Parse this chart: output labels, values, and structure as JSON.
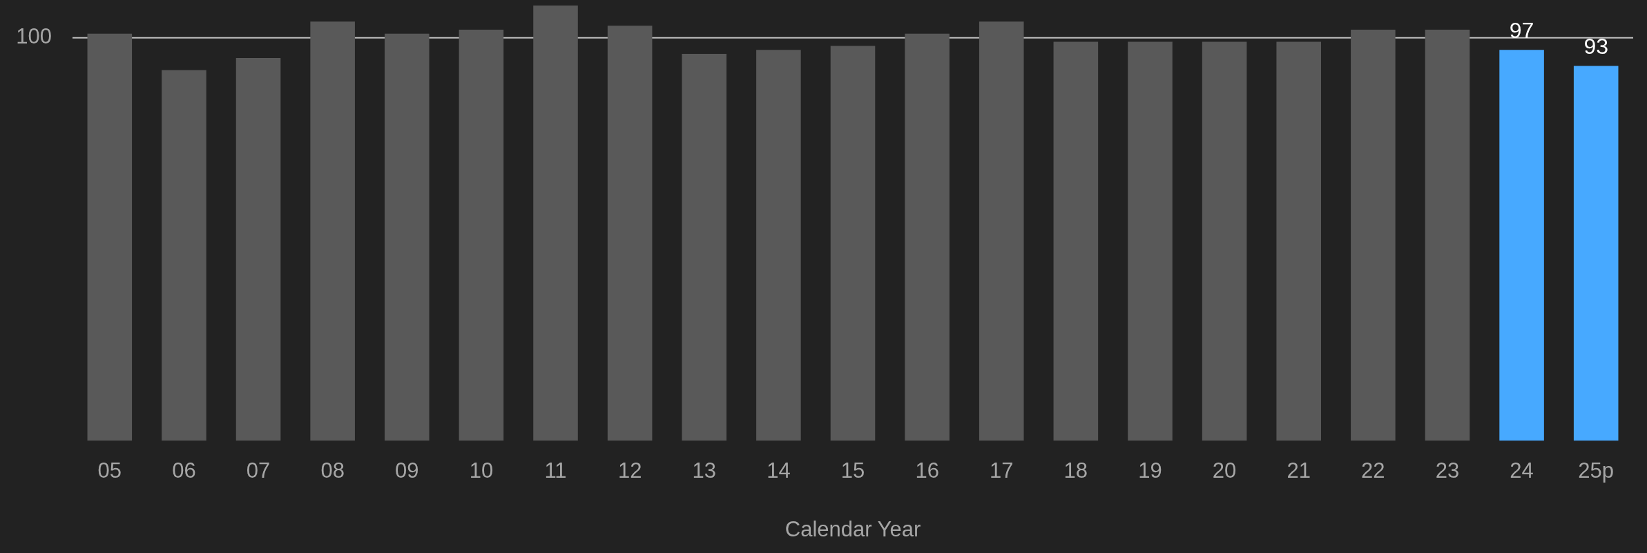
{
  "chart_data": {
    "type": "bar",
    "xlabel": "Calendar Year",
    "categories": [
      "05",
      "06",
      "07",
      "08",
      "09",
      "10",
      "11",
      "12",
      "13",
      "14",
      "15",
      "16",
      "17",
      "18",
      "19",
      "20",
      "21",
      "22",
      "23",
      "24",
      "25p"
    ],
    "values": [
      101,
      92,
      95,
      104,
      101,
      102,
      108,
      103,
      96,
      97,
      98,
      101,
      104,
      99,
      99,
      99,
      99,
      102,
      102,
      97,
      93
    ],
    "colors": [
      "#595959",
      "#595959",
      "#595959",
      "#595959",
      "#595959",
      "#595959",
      "#595959",
      "#595959",
      "#595959",
      "#595959",
      "#595959",
      "#595959",
      "#595959",
      "#595959",
      "#595959",
      "#595959",
      "#595959",
      "#595959",
      "#595959",
      "#47a9ff",
      "#47a9ff"
    ],
    "value_labels": [
      null,
      null,
      null,
      null,
      null,
      null,
      null,
      null,
      null,
      null,
      null,
      null,
      null,
      null,
      null,
      null,
      null,
      null,
      null,
      "97",
      "93"
    ],
    "ref_lines": [
      {
        "axis": "y",
        "value": 100,
        "label": "100",
        "color": "#bfbfbf"
      }
    ],
    "legend": false
  }
}
